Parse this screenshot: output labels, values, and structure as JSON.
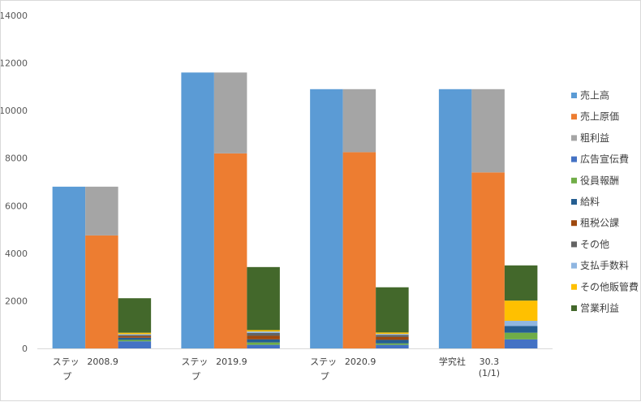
{
  "chart_data": {
    "type": "bar",
    "layout": "clustered-stacked",
    "ylim": [
      0,
      14000
    ],
    "y_ticks": [
      0,
      2000,
      4000,
      6000,
      8000,
      10000,
      12000,
      14000
    ],
    "grid": false,
    "legend_position": "right",
    "categories": [
      {
        "name_lines": [
          "ステッ",
          "プ"
        ],
        "period_lines": [
          "2008.9"
        ]
      },
      {
        "name_lines": [
          "ステッ",
          "プ"
        ],
        "period_lines": [
          "2019.9"
        ]
      },
      {
        "name_lines": [
          "ステッ",
          "プ"
        ],
        "period_lines": [
          "2020.9"
        ]
      },
      {
        "name_lines": [
          "学究社"
        ],
        "period_lines": [
          "30.3",
          "(1/1)"
        ]
      }
    ],
    "series": [
      {
        "name": "売上高",
        "color": "#5B9BD5",
        "stack": 0,
        "values": [
          6800,
          11600,
          10900,
          10900
        ]
      },
      {
        "name": "売上原価",
        "color": "#ED7D31",
        "stack": 1,
        "values": [
          4750,
          8200,
          8250,
          7400
        ]
      },
      {
        "name": "粗利益",
        "color": "#A5A5A5",
        "stack": 1,
        "values": [
          2050,
          3400,
          2650,
          3500
        ]
      },
      {
        "name": "広告宣伝費",
        "color": "#4472C4",
        "stack": 2,
        "values": [
          300,
          150,
          150,
          380
        ]
      },
      {
        "name": "役員報酬",
        "color": "#70AD47",
        "stack": 2,
        "values": [
          60,
          100,
          60,
          280
        ]
      },
      {
        "name": "給料",
        "color": "#255E91",
        "stack": 2,
        "values": [
          90,
          130,
          150,
          280
        ]
      },
      {
        "name": "租税公課",
        "color": "#9E480E",
        "stack": 2,
        "values": [
          60,
          150,
          120,
          0
        ]
      },
      {
        "name": "その他",
        "color": "#636363",
        "stack": 2,
        "values": [
          50,
          120,
          90,
          0
        ]
      },
      {
        "name": "支払手数料",
        "color": "#8FB6E1",
        "stack": 2,
        "values": [
          40,
          60,
          40,
          220
        ]
      },
      {
        "name": "その他販管費",
        "color": "#FFC000",
        "stack": 2,
        "values": [
          60,
          60,
          60,
          850
        ]
      },
      {
        "name": "営業利益",
        "color": "#43682B",
        "stack": 2,
        "values": [
          1450,
          2650,
          1900,
          1480
        ]
      }
    ]
  }
}
